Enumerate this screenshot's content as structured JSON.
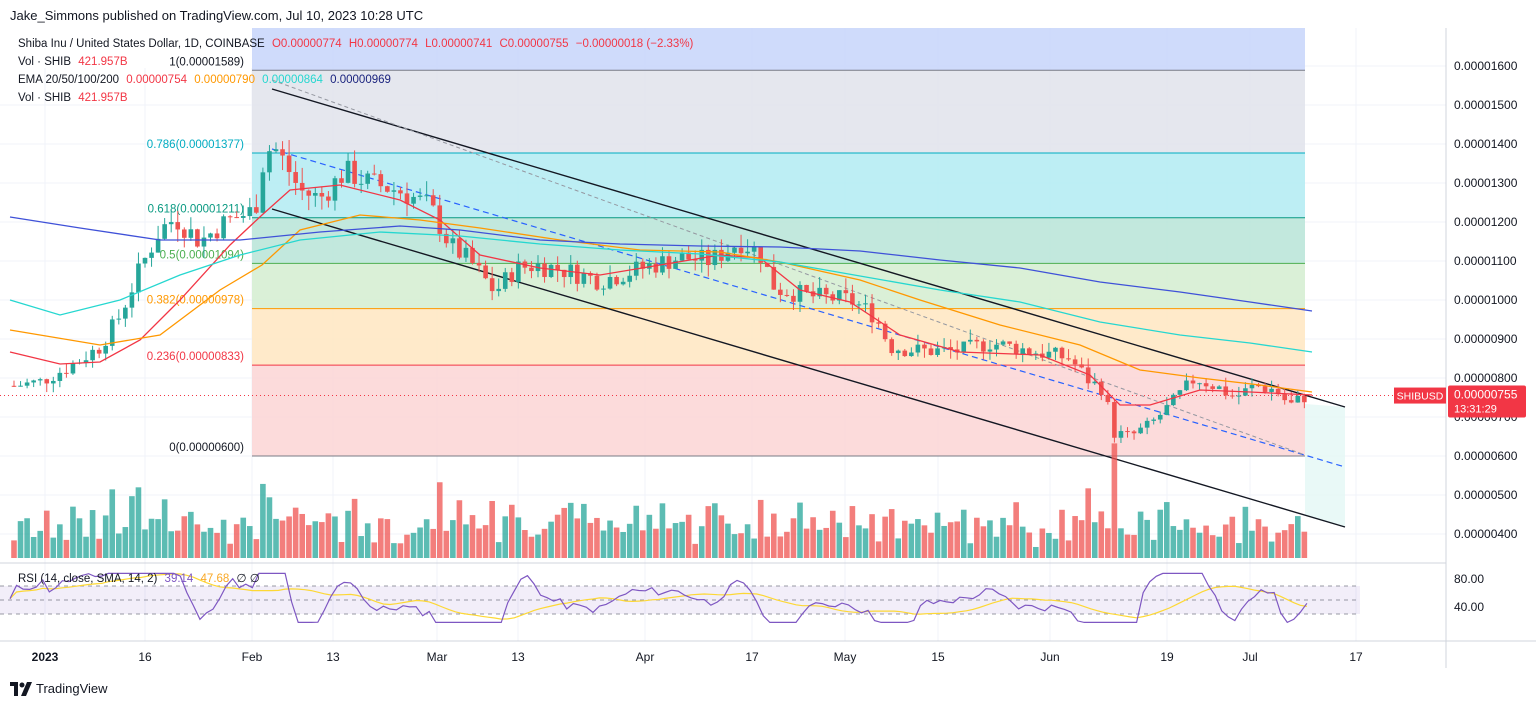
{
  "header": {
    "publisher": "Jake_Simmons published on TradingView.com, Jul 10, 2023 10:28 UTC"
  },
  "legend": {
    "symbol": "Shiba Inu / United States Dollar, 1D, COINBASE",
    "open": "O0.00000774",
    "high": "H0.00000774",
    "low": "L0.00000741",
    "close": "C0.00000755",
    "change": "−0.00000018 (−2.33%)",
    "vol1_label": "Vol · SHIB",
    "vol1_value": "421.957B",
    "ema_label": "EMA 20/50/100/200",
    "ema20": "0.00000754",
    "ema50": "0.00000790",
    "ema100": "0.00000864",
    "ema200": "0.00000969",
    "vol2_label": "Vol · SHIB",
    "vol2_value": "421.957B",
    "rsi_label": "RSI (14, close, SMA, 14, 2)",
    "rsi_value": "39.14",
    "rsi_sma": "47.68",
    "rsi_icons": "∅ ∅"
  },
  "price_tag": {
    "symbol": "SHIBUSD",
    "price": "0.00000755",
    "countdown": "13:31:29"
  },
  "footer": {
    "brand": "TradingView"
  },
  "colors": {
    "up": "#26a69a",
    "down": "#ef5350",
    "ema20": "#f23645",
    "ema50": "#ff9800",
    "ema100": "#26d7d0",
    "ema200": "#3f51d8",
    "rsi": "#7e57c2",
    "rsi_sma": "#fdd835"
  },
  "chart_data": {
    "type": "candlestick",
    "title": "Shiba Inu / United States Dollar, 1D, COINBASE",
    "y_ticks": [
      "0.00001600",
      "0.00001500",
      "0.00001400",
      "0.00001300",
      "0.00001200",
      "0.00001100",
      "0.00001000",
      "0.00000900",
      "0.00000800",
      "0.00000700",
      "0.00000600",
      "0.00000500",
      "0.00000400"
    ],
    "x_ticks": [
      "2023",
      "16",
      "Feb",
      "13",
      "Mar",
      "13",
      "Apr",
      "17",
      "May",
      "15",
      "Jun",
      "19",
      "Jul",
      "17"
    ],
    "rsi_ticks": [
      "80.00",
      "40.00"
    ],
    "ylim": [
      3.5e-06,
      1.67e-05
    ],
    "fib_levels": [
      {
        "label": "1(0.00001589)",
        "value": 1.589e-05,
        "fill": "#e0e3eb"
      },
      {
        "label": "0.786(0.00001377)",
        "value": 1.377e-05,
        "fill": "#b2ebf2"
      },
      {
        "label": "0.618(0.00001211)",
        "value": 1.211e-05,
        "fill": "#b7e4d7"
      },
      {
        "label": "0.5(0.00001094)",
        "value": 1.094e-05,
        "fill": "#d4edd0"
      },
      {
        "label": "0.382(0.00000978)",
        "value": 9.78e-06,
        "fill": "#ffe6c1"
      },
      {
        "label": "0.236(0.00000833)",
        "value": 8.33e-06,
        "fill": "#fcd5d5"
      },
      {
        "label": "0(0.00000600)",
        "value": 6e-06,
        "fill": "#fcd5d5"
      }
    ],
    "last_close": 7.55e-06,
    "grid": true
  }
}
